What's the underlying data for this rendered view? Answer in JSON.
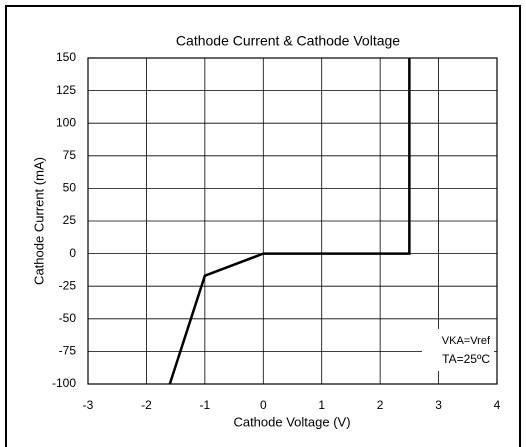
{
  "chart_data": {
    "type": "line",
    "title": "Cathode Current & Cathode Voltage",
    "x_label": "Cathode Voltage (V)",
    "y_label": "Cathode Current (mA)",
    "x": [
      -1.6,
      -1,
      0,
      2.5,
      2.5
    ],
    "series": [
      {
        "color": "#000000",
        "values": [
          -100,
          -17,
          0,
          0,
          150
        ]
      }
    ],
    "xlim": [
      -3,
      4
    ],
    "xticks": [
      -3,
      -2,
      -1,
      0,
      1,
      2,
      3,
      4
    ],
    "ylim": [
      -100,
      150
    ],
    "yticks": [
      -100,
      -75,
      -50,
      -25,
      0,
      25,
      50,
      75,
      100,
      125,
      150
    ],
    "grid": true,
    "annotations": [
      "VKA=Vref",
      "TA=25ºC"
    ]
  }
}
